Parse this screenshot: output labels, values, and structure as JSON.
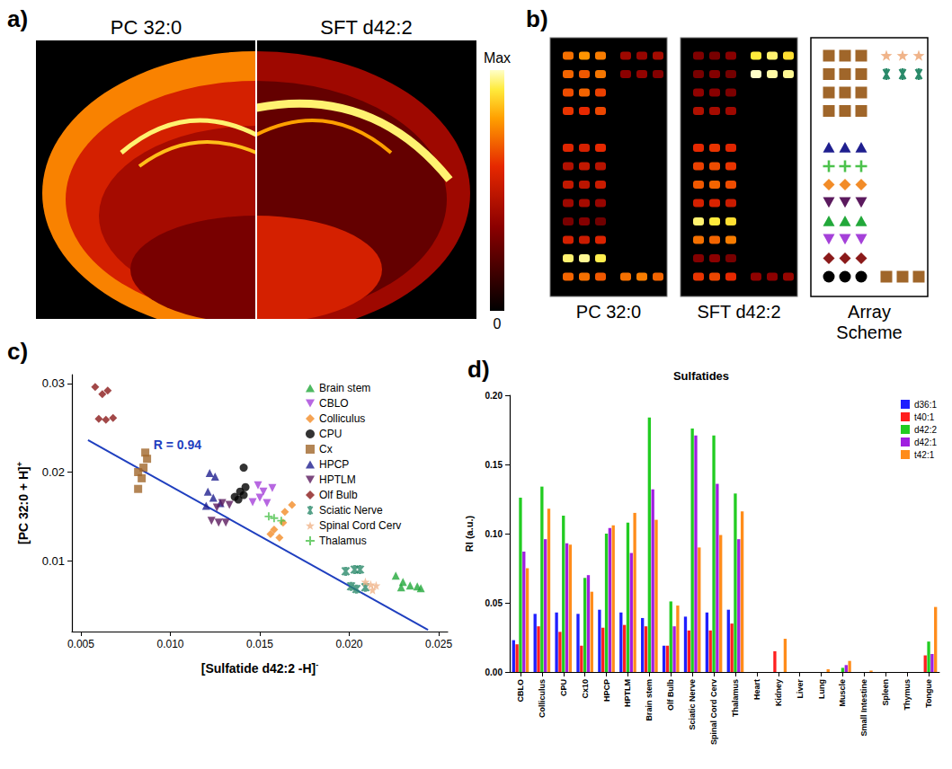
{
  "panel_a": {
    "panel_label": "a)",
    "titles": [
      "PC 32:0",
      "SFT d42:2"
    ],
    "colorbar": {
      "max_label": "Max",
      "min_label": "0"
    }
  },
  "panel_b": {
    "panel_label": "b)",
    "images": [
      "PC 32:0",
      "SFT d42:2"
    ],
    "scheme_title": "Array Scheme",
    "intensity_range": [
      0,
      1
    ],
    "array": {
      "left": [
        {
          "region": "Cx",
          "intensities": [
            [
              0.72,
              0.78,
              0.74
            ],
            [
              0.32,
              0.3,
              0.34
            ]
          ]
        },
        {
          "region": "Cx",
          "intensities": [
            [
              0.7,
              0.68,
              0.73
            ],
            [
              0.3,
              0.33,
              0.29
            ]
          ]
        },
        {
          "region": "Cx",
          "intensities": [
            [
              0.66,
              0.7,
              0.64
            ],
            [
              0.36,
              0.34,
              0.31
            ]
          ]
        },
        {
          "region": "Cx",
          "intensities": [
            [
              0.62,
              0.6,
              0.65
            ],
            [
              0.45,
              0.42,
              0.4
            ]
          ]
        },
        null,
        {
          "region": "HPCP",
          "intensities": [
            [
              0.58,
              0.55,
              0.6
            ],
            [
              0.6,
              0.62,
              0.58
            ]
          ]
        },
        {
          "region": "Thalamus",
          "intensities": [
            [
              0.45,
              0.5,
              0.47
            ],
            [
              0.64,
              0.66,
              0.62
            ]
          ]
        },
        {
          "region": "Colliculus",
          "intensities": [
            [
              0.5,
              0.48,
              0.52
            ],
            [
              0.68,
              0.7,
              0.66
            ]
          ]
        },
        {
          "region": "HPTLM",
          "intensities": [
            [
              0.4,
              0.42,
              0.38
            ],
            [
              0.55,
              0.57,
              0.52
            ]
          ]
        },
        {
          "region": "Brain stem",
          "intensities": [
            [
              0.3,
              0.33,
              0.28
            ],
            [
              0.95,
              0.92,
              0.9
            ]
          ]
        },
        {
          "region": "CBLO",
          "intensities": [
            [
              0.55,
              0.52,
              0.57
            ],
            [
              0.72,
              0.7,
              0.74
            ]
          ]
        },
        {
          "region": "Olf Bulb",
          "intensities": [
            [
              0.95,
              0.97,
              0.93
            ],
            [
              0.33,
              0.35,
              0.3
            ]
          ]
        },
        {
          "region": "CPU",
          "intensities": [
            [
              0.7,
              0.72,
              0.68
            ],
            [
              0.62,
              0.65,
              0.6
            ]
          ]
        }
      ],
      "right": [
        {
          "region": "Spinal Cord Cerv",
          "intensities": [
            [
              0.4,
              0.38,
              0.42
            ],
            [
              0.92,
              0.95,
              0.9
            ]
          ]
        },
        {
          "region": "Sciatic Nerve",
          "intensities": [
            [
              0.35,
              0.37,
              0.33
            ],
            [
              1.0,
              0.98,
              0.97
            ]
          ]
        },
        null,
        null,
        null,
        null,
        null,
        null,
        null,
        null,
        null,
        null,
        {
          "region": "Cx",
          "intensities": [
            [
              0.72,
              0.74,
              0.7
            ],
            [
              0.36,
              0.35,
              0.38
            ]
          ]
        }
      ]
    }
  },
  "chart_data": [
    {
      "type": "scatter",
      "panel_label": "c)",
      "xlabel": {
        "text": "[Sulfatide d42:2 -H]",
        "superscript": "-"
      },
      "ylabel": {
        "text": "[PC 32:0 + H]",
        "superscript": "+"
      },
      "xlim": [
        0.0045,
        0.0255
      ],
      "xticks": [
        {
          "value": 0.005,
          "label": "0.005"
        },
        {
          "value": 0.01,
          "label": "0.010"
        },
        {
          "value": 0.015,
          "label": "0.015"
        },
        {
          "value": 0.02,
          "label": "0.020"
        },
        {
          "value": 0.025,
          "label": "0.025"
        }
      ],
      "ylim": [
        0.002,
        0.031
      ],
      "yticks": [
        0.01,
        0.02,
        0.03
      ],
      "grid": false,
      "legend": "upper right",
      "series": [
        {
          "name": "Brain stem",
          "color": "#22a83a",
          "marker": "triangle",
          "x": [
            0.0226,
            0.023,
            0.0234,
            0.0238,
            0.024,
            0.0229
          ],
          "y": [
            0.0083,
            0.0076,
            0.0072,
            0.0071,
            0.0069,
            0.007
          ]
        },
        {
          "name": "CBLO",
          "color": "#a541d9",
          "marker": "triangle-down",
          "x": [
            0.0149,
            0.0152,
            0.015,
            0.0146,
            0.0154,
            0.0157
          ],
          "y": [
            0.0185,
            0.0178,
            0.0171,
            0.0166,
            0.0165,
            0.0182
          ]
        },
        {
          "name": "Colliculus",
          "color": "#f28c28",
          "marker": "diamond",
          "x": [
            0.0168,
            0.0164,
            0.0163,
            0.0158,
            0.0161,
            0.0156
          ],
          "y": [
            0.0163,
            0.0155,
            0.0143,
            0.0135,
            0.0126,
            0.013
          ]
        },
        {
          "name": "CPU",
          "color": "#000000",
          "marker": "circle",
          "x": [
            0.0141,
            0.0142,
            0.0139,
            0.0136,
            0.0141,
            0.0138
          ],
          "y": [
            0.0205,
            0.0183,
            0.0178,
            0.0172,
            0.0174,
            0.0169
          ]
        },
        {
          "name": "Cx",
          "color": "#a0662a",
          "marker": "square",
          "x": [
            0.0086,
            0.0087,
            0.0085,
            0.0082,
            0.0084,
            0.0082
          ],
          "y": [
            0.0222,
            0.0215,
            0.0205,
            0.02,
            0.0193,
            0.0181
          ]
        },
        {
          "name": "HPCP",
          "color": "#1f1f8f",
          "marker": "triangle",
          "x": [
            0.0122,
            0.0125,
            0.0121,
            0.0124,
            0.0128,
            0.012
          ],
          "y": [
            0.0199,
            0.0195,
            0.0178,
            0.0171,
            0.0165,
            0.0162
          ]
        },
        {
          "name": "HPTLM",
          "color": "#5b1a5e",
          "marker": "triangle-down",
          "x": [
            0.0123,
            0.0127,
            0.0131,
            0.0126,
            0.0129,
            0.0133
          ],
          "y": [
            0.0145,
            0.0143,
            0.0143,
            0.016,
            0.0165,
            0.0163
          ]
        },
        {
          "name": "Olf Bulb",
          "color": "#8b1a1a",
          "marker": "diamond",
          "x": [
            0.0058,
            0.0062,
            0.0065,
            0.006,
            0.0064,
            0.0068
          ],
          "y": [
            0.0296,
            0.0288,
            0.0292,
            0.026,
            0.0259,
            0.0261
          ]
        },
        {
          "name": "Sciatic Nerve",
          "color": "#2a8a6a",
          "marker": "asterisk",
          "x": [
            0.0198,
            0.0203,
            0.0206,
            0.0201,
            0.0204,
            0.0209
          ],
          "y": [
            0.0088,
            0.009,
            0.009,
            0.0071,
            0.0068,
            0.007
          ]
        },
        {
          "name": "Spinal Cord Cerv",
          "color": "#f0b48a",
          "marker": "star",
          "x": [
            0.0209,
            0.0212,
            0.0215,
            0.0213
          ],
          "y": [
            0.0076,
            0.0073,
            0.0072,
            0.0067
          ]
        },
        {
          "name": "Thalamus",
          "color": "#4cc24c",
          "marker": "plus",
          "x": [
            0.0158,
            0.0162,
            0.0155
          ],
          "y": [
            0.0148,
            0.0145,
            0.015
          ]
        }
      ],
      "fit": {
        "type": "line",
        "line_style": "solid",
        "color": "#1f3fbf",
        "label": "R = 0.94",
        "x": [
          0.0054,
          0.0244
        ],
        "y": [
          0.0236,
          0.0022
        ]
      }
    },
    {
      "type": "bar",
      "panel_label": "d)",
      "title": "Sulfatides",
      "ylabel": "RI (a.u.)",
      "categories": [
        "CBLO",
        "Colliculus",
        "CPU",
        "Cx10",
        "HPCP",
        "HPTLM",
        "Brain stem",
        "Olf Bulb",
        "Sciatic Nerve",
        "Spinal Cord Cerv",
        "Thalamus",
        "Heart",
        "Kidney",
        "Liver",
        "Lung",
        "Muscle",
        "Small Intestine",
        "Spleen",
        "Thymus",
        "Tongue"
      ],
      "ylim": [
        0,
        0.2
      ],
      "yticks": [
        {
          "value": 0,
          "label": "0.00"
        },
        {
          "value": 0.05,
          "label": "0.05"
        },
        {
          "value": 0.1,
          "label": "0.10"
        },
        {
          "value": 0.15,
          "label": "0.15"
        },
        {
          "value": 0.2,
          "label": "0.20"
        }
      ],
      "grid": false,
      "legend": "upper right",
      "series": [
        {
          "name": "d36:1",
          "color": "#1f1fff",
          "values": [
            0.023,
            0.042,
            0.043,
            0.042,
            0.045,
            0.043,
            0.039,
            0.019,
            0.04,
            0.043,
            0.045,
            0,
            0,
            0,
            0,
            0,
            0,
            0,
            0,
            0
          ]
        },
        {
          "name": "t40:1",
          "color": "#ff1f1f",
          "values": [
            0.02,
            0.033,
            0.029,
            0.019,
            0.032,
            0.034,
            0.033,
            0.019,
            0.03,
            0.03,
            0.035,
            0,
            0.015,
            0,
            0,
            0,
            0,
            0,
            0,
            0.012
          ]
        },
        {
          "name": "d42:2",
          "color": "#22cc22",
          "values": [
            0.126,
            0.134,
            0.113,
            0.068,
            0.1,
            0.108,
            0.184,
            0.051,
            0.176,
            0.171,
            0.129,
            0,
            0,
            0,
            0,
            0.003,
            0,
            0,
            0,
            0.022
          ]
        },
        {
          "name": "d42:1",
          "color": "#a01fe0",
          "values": [
            0.087,
            0.096,
            0.093,
            0.07,
            0.104,
            0.086,
            0.132,
            0.033,
            0.171,
            0.136,
            0.096,
            0,
            0,
            0,
            0,
            0.005,
            0,
            0,
            0,
            0.013
          ]
        },
        {
          "name": "t42:1",
          "color": "#ff8c1a",
          "values": [
            0.075,
            0.118,
            0.092,
            0.058,
            0.106,
            0.115,
            0.11,
            0.048,
            0.09,
            0.099,
            0.116,
            0,
            0.024,
            0,
            0.002,
            0.008,
            0.001,
            0,
            0,
            0.047
          ]
        }
      ]
    }
  ]
}
